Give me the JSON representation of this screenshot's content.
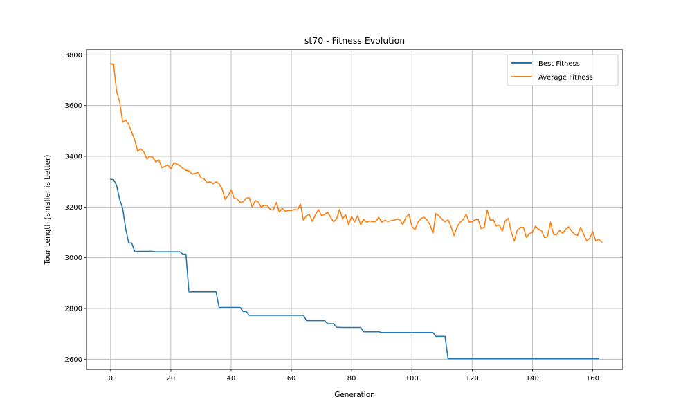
{
  "chart_data": {
    "type": "line",
    "title": "st70 - Fitness Evolution",
    "xlabel": "Generation",
    "ylabel": "Tour Length (smaller is better)",
    "xlim": [
      -8,
      170
    ],
    "ylim": [
      2560,
      3820
    ],
    "xticks": [
      0,
      20,
      40,
      60,
      80,
      100,
      120,
      140,
      160
    ],
    "yticks": [
      2600,
      2800,
      3000,
      3200,
      3400,
      3600,
      3800
    ],
    "grid": true,
    "legend_position": "upper right",
    "series": [
      {
        "name": "Best Fitness",
        "color": "#1f77b4",
        "points": [
          [
            0,
            3310
          ],
          [
            1,
            3308
          ],
          [
            2,
            3285
          ],
          [
            3,
            3230
          ],
          [
            4,
            3195
          ],
          [
            5,
            3115
          ],
          [
            6,
            3058
          ],
          [
            7,
            3058
          ],
          [
            8,
            3025
          ],
          [
            14,
            3025
          ],
          [
            15,
            3023
          ],
          [
            23,
            3023
          ],
          [
            24,
            3014
          ],
          [
            25,
            3014
          ],
          [
            26,
            2866
          ],
          [
            35,
            2866
          ],
          [
            36,
            2804
          ],
          [
            43,
            2804
          ],
          [
            44,
            2788
          ],
          [
            45,
            2788
          ],
          [
            46,
            2773
          ],
          [
            64,
            2773
          ],
          [
            65,
            2752
          ],
          [
            71,
            2752
          ],
          [
            72,
            2740
          ],
          [
            74,
            2740
          ],
          [
            75,
            2726
          ],
          [
            77,
            2725
          ],
          [
            83,
            2725
          ],
          [
            84,
            2708
          ],
          [
            89,
            2708
          ],
          [
            90,
            2705
          ],
          [
            107,
            2705
          ],
          [
            108,
            2690
          ],
          [
            111,
            2690
          ],
          [
            112,
            2602
          ],
          [
            162,
            2602
          ]
        ]
      },
      {
        "name": "Average Fitness",
        "color": "#ff7f0e",
        "points": [
          [
            0,
            3765
          ],
          [
            1,
            3763
          ],
          [
            2,
            3655
          ],
          [
            3,
            3615
          ],
          [
            4,
            3535
          ],
          [
            5,
            3543
          ],
          [
            6,
            3525
          ],
          [
            7,
            3495
          ],
          [
            8,
            3465
          ],
          [
            9,
            3420
          ],
          [
            10,
            3430
          ],
          [
            11,
            3418
          ],
          [
            12,
            3390
          ],
          [
            13,
            3400
          ],
          [
            14,
            3396
          ],
          [
            15,
            3378
          ],
          [
            16,
            3386
          ],
          [
            17,
            3355
          ],
          [
            18,
            3360
          ],
          [
            19,
            3366
          ],
          [
            20,
            3350
          ],
          [
            21,
            3375
          ],
          [
            22,
            3370
          ],
          [
            23,
            3363
          ],
          [
            24,
            3352
          ],
          [
            25,
            3345
          ],
          [
            26,
            3343
          ],
          [
            27,
            3330
          ],
          [
            28,
            3332
          ],
          [
            29,
            3337
          ],
          [
            30,
            3315
          ],
          [
            31,
            3312
          ],
          [
            32,
            3296
          ],
          [
            33,
            3300
          ],
          [
            34,
            3292
          ],
          [
            35,
            3300
          ],
          [
            36,
            3292
          ],
          [
            37,
            3272
          ],
          [
            38,
            3230
          ],
          [
            39,
            3245
          ],
          [
            40,
            3268
          ],
          [
            41,
            3234
          ],
          [
            42,
            3232
          ],
          [
            43,
            3218
          ],
          [
            44,
            3221
          ],
          [
            45,
            3235
          ],
          [
            46,
            3237
          ],
          [
            47,
            3200
          ],
          [
            48,
            3226
          ],
          [
            49,
            3220
          ],
          [
            50,
            3200
          ],
          [
            51,
            3207
          ],
          [
            52,
            3206
          ],
          [
            53,
            3190
          ],
          [
            54,
            3188
          ],
          [
            55,
            3218
          ],
          [
            56,
            3180
          ],
          [
            57,
            3195
          ],
          [
            58,
            3183
          ],
          [
            59,
            3187
          ],
          [
            60,
            3186
          ],
          [
            61,
            3190
          ],
          [
            62,
            3188
          ],
          [
            63,
            3212
          ],
          [
            64,
            3148
          ],
          [
            65,
            3166
          ],
          [
            66,
            3170
          ],
          [
            67,
            3143
          ],
          [
            68,
            3170
          ],
          [
            69,
            3190
          ],
          [
            70,
            3167
          ],
          [
            71,
            3170
          ],
          [
            72,
            3180
          ],
          [
            73,
            3160
          ],
          [
            74,
            3142
          ],
          [
            75,
            3153
          ],
          [
            76,
            3191
          ],
          [
            77,
            3153
          ],
          [
            78,
            3170
          ],
          [
            79,
            3130
          ],
          [
            80,
            3163
          ],
          [
            81,
            3141
          ],
          [
            82,
            3166
          ],
          [
            83,
            3130
          ],
          [
            84,
            3152
          ],
          [
            85,
            3140
          ],
          [
            86,
            3145
          ],
          [
            87,
            3142
          ],
          [
            88,
            3143
          ],
          [
            89,
            3160
          ],
          [
            90,
            3140
          ],
          [
            91,
            3148
          ],
          [
            92,
            3143
          ],
          [
            93,
            3146
          ],
          [
            94,
            3148
          ],
          [
            95,
            3152
          ],
          [
            96,
            3150
          ],
          [
            97,
            3130
          ],
          [
            98,
            3160
          ],
          [
            99,
            3172
          ],
          [
            100,
            3125
          ],
          [
            101,
            3110
          ],
          [
            102,
            3140
          ],
          [
            103,
            3155
          ],
          [
            104,
            3160
          ],
          [
            105,
            3150
          ],
          [
            106,
            3130
          ],
          [
            107,
            3098
          ],
          [
            108,
            3175
          ],
          [
            109,
            3165
          ],
          [
            110,
            3152
          ],
          [
            111,
            3142
          ],
          [
            112,
            3150
          ],
          [
            113,
            3122
          ],
          [
            114,
            3087
          ],
          [
            115,
            3122
          ],
          [
            116,
            3140
          ],
          [
            117,
            3150
          ],
          [
            118,
            3172
          ],
          [
            119,
            3140
          ],
          [
            120,
            3142
          ],
          [
            121,
            3150
          ],
          [
            122,
            3150
          ],
          [
            123,
            3115
          ],
          [
            124,
            3120
          ],
          [
            125,
            3187
          ],
          [
            126,
            3148
          ],
          [
            127,
            3150
          ],
          [
            128,
            3125
          ],
          [
            129,
            3129
          ],
          [
            130,
            3105
          ],
          [
            131,
            3146
          ],
          [
            132,
            3155
          ],
          [
            133,
            3100
          ],
          [
            134,
            3066
          ],
          [
            135,
            3110
          ],
          [
            136,
            3120
          ],
          [
            137,
            3120
          ],
          [
            138,
            3080
          ],
          [
            139,
            3095
          ],
          [
            140,
            3100
          ],
          [
            141,
            3125
          ],
          [
            142,
            3112
          ],
          [
            143,
            3107
          ],
          [
            144,
            3080
          ],
          [
            145,
            3083
          ],
          [
            146,
            3140
          ],
          [
            147,
            3093
          ],
          [
            148,
            3090
          ],
          [
            149,
            3108
          ],
          [
            150,
            3096
          ],
          [
            151,
            3112
          ],
          [
            152,
            3122
          ],
          [
            153,
            3105
          ],
          [
            154,
            3092
          ],
          [
            155,
            3088
          ],
          [
            156,
            3120
          ],
          [
            157,
            3092
          ],
          [
            158,
            3067
          ],
          [
            159,
            3077
          ],
          [
            160,
            3103
          ],
          [
            161,
            3067
          ],
          [
            162,
            3073
          ],
          [
            163,
            3062
          ]
        ]
      }
    ]
  }
}
